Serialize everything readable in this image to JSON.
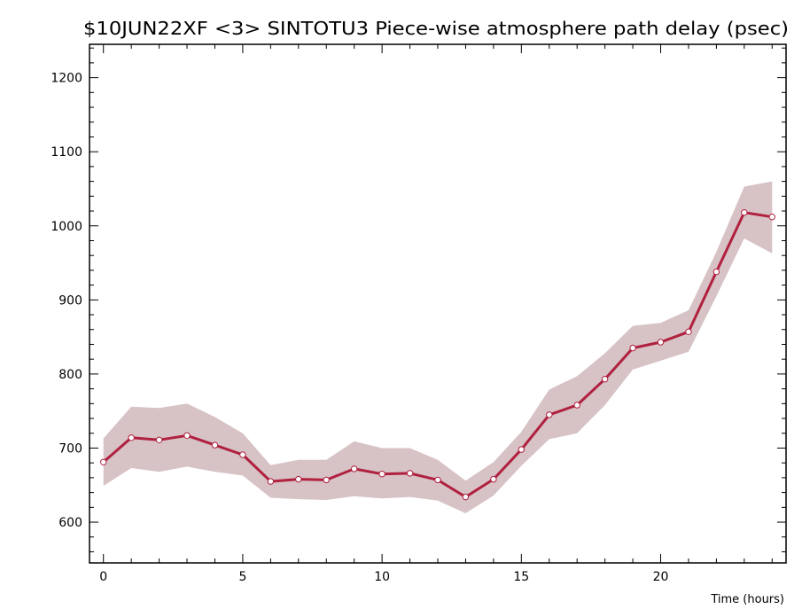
{
  "chart_data": {
    "type": "line",
    "title": "$10JUN22XF <3>  SINTOTU3  Piece-wise atmosphere path delay (psec)",
    "xlabel": "Time (hours)",
    "ylabel": "",
    "xlim": [
      -0.5,
      24.5
    ],
    "ylim": [
      545,
      1245
    ],
    "x_ticks": [
      0,
      5,
      10,
      15,
      20
    ],
    "y_ticks": [
      600,
      700,
      800,
      900,
      1000,
      1100,
      1200
    ],
    "grid": false,
    "colors": {
      "line": "#b0203f",
      "band": "#d7c2c5",
      "marker_fill": "#ffffff",
      "axis": "#000000"
    },
    "series": [
      {
        "x": [
          0,
          1,
          2,
          3,
          4,
          5,
          6,
          7,
          8,
          9,
          10,
          11,
          12,
          13,
          14,
          15,
          16,
          17,
          18,
          19,
          20,
          21,
          22,
          23,
          24
        ],
        "y": [
          681,
          714,
          711,
          717,
          704,
          691,
          655,
          658,
          657,
          672,
          665,
          666,
          657,
          634,
          658,
          698,
          745,
          758,
          793,
          835,
          843,
          857,
          938,
          1018,
          1012
        ],
        "upper": [
          713,
          756,
          754,
          760,
          742,
          720,
          677,
          684,
          684,
          709,
          700,
          700,
          684,
          656,
          681,
          722,
          779,
          797,
          828,
          865,
          869,
          886,
          965,
          1053,
          1060
        ],
        "lower": [
          649,
          673,
          668,
          675,
          668,
          663,
          633,
          631,
          630,
          635,
          632,
          634,
          629,
          612,
          636,
          676,
          712,
          720,
          758,
          806,
          818,
          830,
          905,
          983,
          963
        ]
      }
    ]
  }
}
